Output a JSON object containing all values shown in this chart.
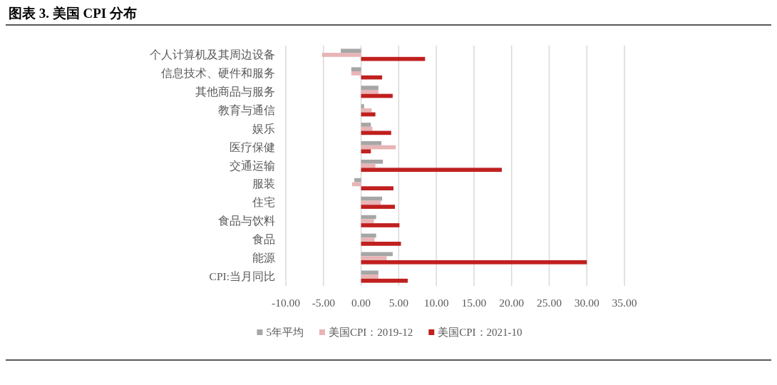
{
  "chart_data": {
    "type": "bar",
    "orientation": "horizontal",
    "title": "图表 3. 美国 CPI 分布",
    "categories": [
      "个人计算机及其周边设备",
      "信息技术、硬件和服务",
      "其他商品与服务",
      "教育与通信",
      "娱乐",
      "医疗保健",
      "交通运输",
      "服装",
      "住宅",
      "食品与饮料",
      "食品",
      "能源",
      "CPI:当月同比"
    ],
    "series": [
      {
        "name": "5年平均",
        "color": "#a6a6a6",
        "values": [
          -2.7,
          -1.3,
          2.3,
          0.4,
          1.3,
          2.7,
          2.9,
          -0.9,
          2.8,
          2.0,
          2.0,
          4.2,
          2.3
        ]
      },
      {
        "name": "美国CPI：2019-12",
        "color": "#e8b4b6",
        "values": [
          -5.2,
          -1.3,
          2.3,
          1.4,
          1.5,
          4.6,
          1.9,
          -1.2,
          2.6,
          1.7,
          1.8,
          3.4,
          2.3
        ]
      },
      {
        "name": "美国CPI：2021-10",
        "color": "#c0201f",
        "values": [
          8.5,
          2.8,
          4.2,
          1.9,
          4.0,
          1.3,
          18.7,
          4.3,
          4.5,
          5.1,
          5.3,
          30.0,
          6.2
        ]
      }
    ],
    "xlim": [
      -10,
      35
    ],
    "xticks": [
      {
        "value": -10,
        "label": "-10.00"
      },
      {
        "value": -5,
        "label": "-5.00"
      },
      {
        "value": 0,
        "label": "0.00"
      },
      {
        "value": 5,
        "label": "5.00"
      },
      {
        "value": 10,
        "label": "10.00"
      },
      {
        "value": 15,
        "label": "15.00"
      },
      {
        "value": 20,
        "label": "20.00"
      },
      {
        "value": 25,
        "label": "25.00"
      },
      {
        "value": 30,
        "label": "30.00"
      },
      {
        "value": 35,
        "label": "35.00"
      }
    ],
    "grid": "x",
    "legend": "bottom"
  }
}
